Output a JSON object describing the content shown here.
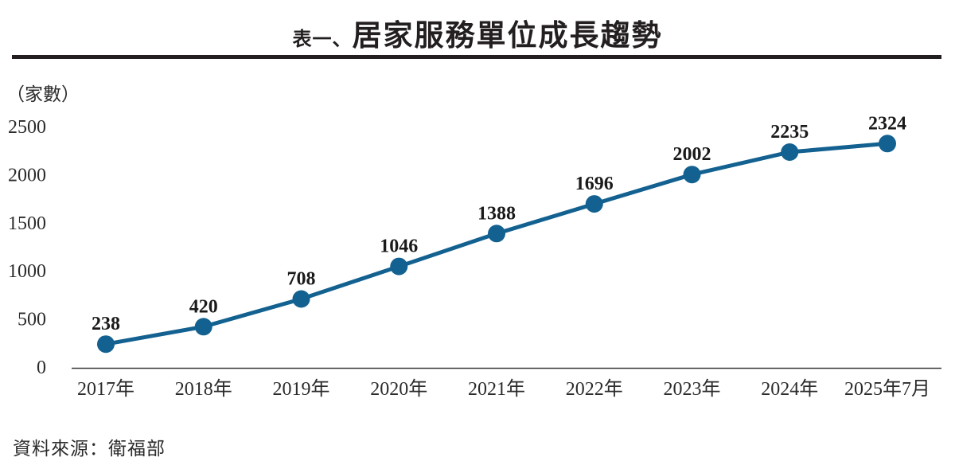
{
  "title": {
    "prefix": "表一、",
    "main": "居家服務單位成長趨勢"
  },
  "unit_label": "（家數）",
  "source": "資料來源：衛福部",
  "colors": {
    "line": "#136190",
    "marker": "#136190",
    "text": "#231f20",
    "axis": "#3a3a3a",
    "divider": "#231f20"
  },
  "chart_data": {
    "type": "line",
    "title": "表一、居家服務單位成長趨勢",
    "categories": [
      "2017年",
      "2018年",
      "2019年",
      "2020年",
      "2021年",
      "2022年",
      "2023年",
      "2024年",
      "2025年7月"
    ],
    "values": [
      238,
      420,
      708,
      1046,
      1388,
      1696,
      2002,
      2235,
      2324
    ],
    "xlabel": "",
    "ylabel": "（家數）",
    "ylim": [
      0,
      2500
    ],
    "yticks": [
      0,
      500,
      1000,
      1500,
      2000,
      2500
    ],
    "grid": false,
    "legend": "none",
    "data_labels": true,
    "source_note": "資料來源：衛福部"
  }
}
